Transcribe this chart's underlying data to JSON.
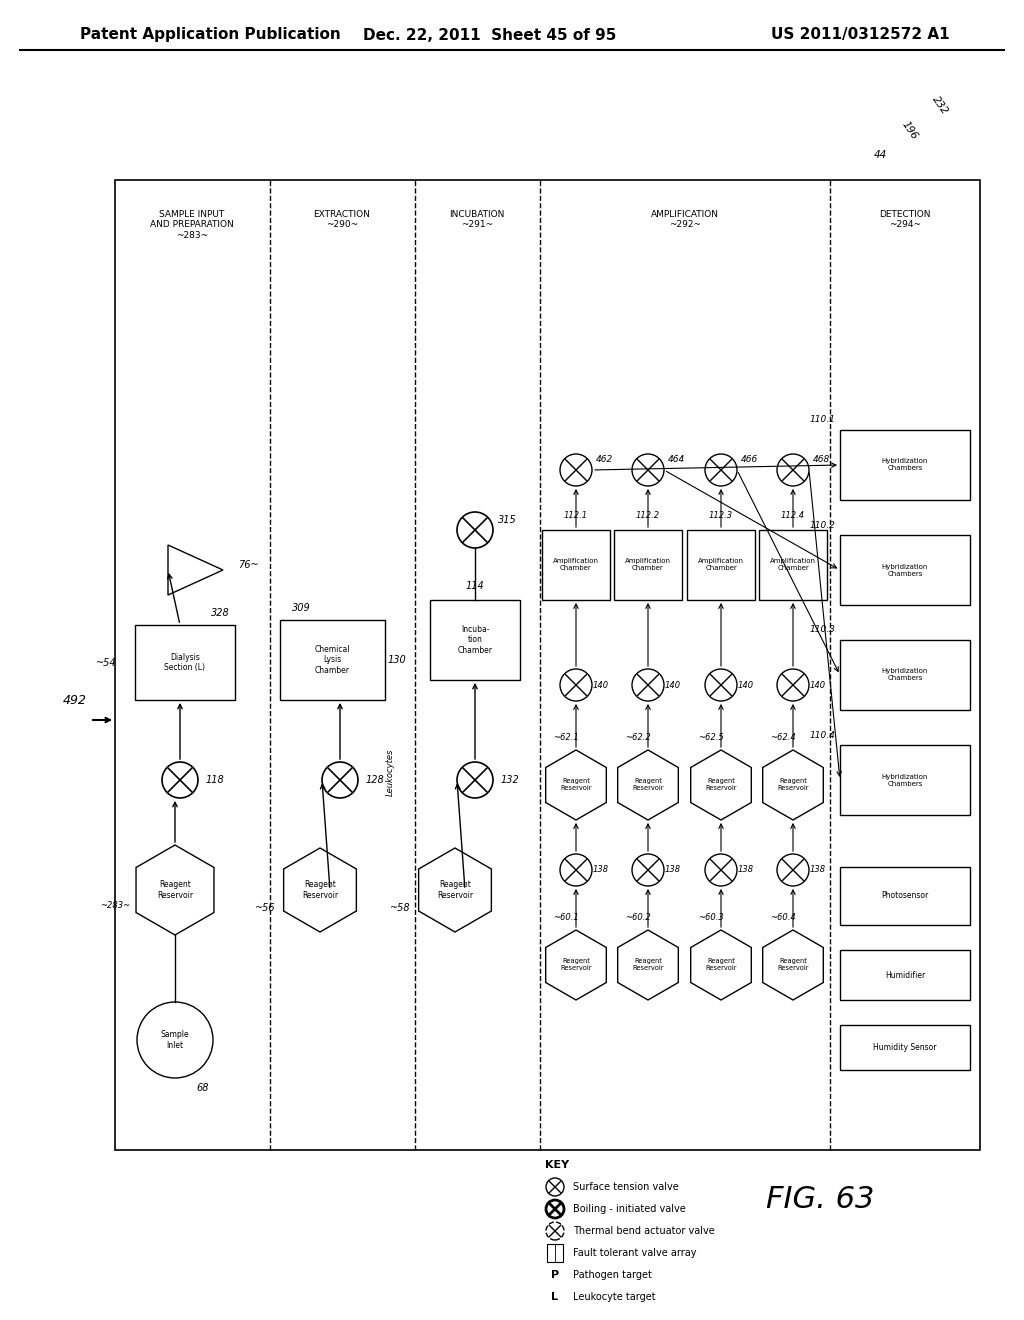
{
  "title_left": "Patent Application Publication",
  "title_center": "Dec. 22, 2011  Sheet 45 of 95",
  "title_right": "US 2011/0312572 A1",
  "fig_label": "FIG. 63",
  "bg_color": "#ffffff"
}
